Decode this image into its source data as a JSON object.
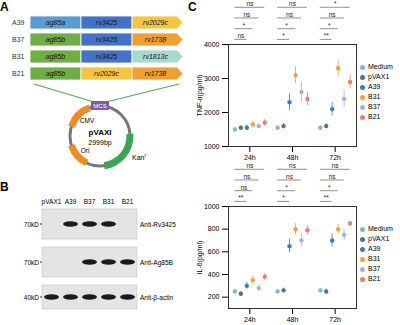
{
  "panel_labels": [
    "A",
    "B",
    "C"
  ],
  "constructs": [
    {
      "name": "A39",
      "genes": [
        "ag85a",
        "rv3425",
        "rv2029c"
      ]
    },
    {
      "name": "B37",
      "genes": [
        "ag85b",
        "rv3425",
        "rv1738"
      ]
    },
    {
      "name": "B31",
      "genes": [
        "ag85b",
        "rv3425",
        "rv1813c"
      ]
    },
    {
      "name": "B21",
      "genes": [
        "ag85b",
        "rv2029c",
        "rv1738"
      ]
    }
  ],
  "gene_colors": {
    "ag85a": "#5b9bd5",
    "ag85b": "#70ad47",
    "rv3425": "#4472c4",
    "rv2029c": "#f4c542",
    "rv1738": "#f0a030",
    "rv1813c": "#a9d8d0"
  },
  "plasmid": {
    "name": "pVAXI",
    "size": "2999bp",
    "promoter": "CMV",
    "origin": "Ori",
    "resistance": "Kan",
    "resistance_superscript": "r",
    "cloning_site": "MCS"
  },
  "blot": {
    "lanes": [
      "pVAX1",
      "A39",
      "B37",
      "B31",
      "B21"
    ],
    "rows": [
      {
        "marker": "70kD",
        "antibody": "Anti-Rv3425",
        "bands": [
          false,
          true,
          true,
          true,
          false
        ]
      },
      {
        "marker": "70kD",
        "antibody": "Anti-Ag85B",
        "bands": [
          false,
          false,
          true,
          true,
          true
        ]
      },
      {
        "marker": "40kD",
        "antibody": "Anti-β-actin",
        "bands": [
          true,
          true,
          true,
          true,
          true
        ]
      }
    ]
  },
  "chart_data": [
    {
      "type": "scatter",
      "y_label": "TNF-α(pg/ml)",
      "categories": [
        "24h",
        "48h",
        "72h"
      ],
      "ylim": [
        1000,
        4000
      ],
      "yticks": [
        1000,
        2000,
        3000,
        4000
      ],
      "legend": "right",
      "series": [
        {
          "name": "Medium",
          "color": "#7fb8d8",
          "values": [
            1500,
            1550,
            1550
          ],
          "error": [
            60,
            60,
            60
          ]
        },
        {
          "name": "pVAX1",
          "color": "#5a6e8c",
          "values": [
            1550,
            1600,
            1600
          ],
          "error": [
            60,
            80,
            70
          ]
        },
        {
          "name": "A39",
          "color": "#3a7bbf",
          "values": [
            1550,
            2300,
            2100
          ],
          "error": [
            80,
            250,
            200
          ]
        },
        {
          "name": "B31",
          "color": "#f0a040",
          "values": [
            1650,
            3100,
            3300
          ],
          "error": [
            100,
            250,
            250
          ]
        },
        {
          "name": "B37",
          "color": "#a0b4e0",
          "values": [
            1600,
            2600,
            2400
          ],
          "error": [
            80,
            300,
            250
          ]
        },
        {
          "name": "B21",
          "color": "#e8806a",
          "values": [
            1700,
            2400,
            2900
          ],
          "error": [
            100,
            200,
            200
          ]
        }
      ],
      "significance": [
        [
          "ns",
          "ns",
          "*",
          "ns"
        ],
        [
          "ns",
          "ns",
          "*",
          "*"
        ],
        [
          "*",
          "ns",
          "*",
          "**"
        ]
      ]
    },
    {
      "type": "scatter",
      "y_label": "IL-6(pg/ml)",
      "categories": [
        "24h",
        "48h",
        "72h"
      ],
      "ylim": [
        100,
        1000
      ],
      "yticks": [
        200,
        400,
        600,
        800,
        1000
      ],
      "legend": "right",
      "series": [
        {
          "name": "Medium",
          "color": "#7fb8d8",
          "values": [
            250,
            250,
            260
          ],
          "error": [
            20,
            20,
            20
          ]
        },
        {
          "name": "pVAX1",
          "color": "#5a6e8c",
          "values": [
            230,
            260,
            250
          ],
          "error": [
            20,
            20,
            20
          ]
        },
        {
          "name": "A39",
          "color": "#3a7bbf",
          "values": [
            300,
            650,
            700
          ],
          "error": [
            30,
            60,
            60
          ]
        },
        {
          "name": "B31",
          "color": "#f0a040",
          "values": [
            350,
            800,
            800
          ],
          "error": [
            40,
            50,
            40
          ]
        },
        {
          "name": "B37",
          "color": "#a0b4e0",
          "values": [
            280,
            700,
            750
          ],
          "error": [
            30,
            60,
            50
          ]
        },
        {
          "name": "B21",
          "color": "#e8806a",
          "values": [
            380,
            790,
            850
          ],
          "error": [
            30,
            40,
            20
          ]
        }
      ],
      "significance": [
        [
          "ns",
          "ns",
          "ns",
          "**"
        ],
        [
          "ns",
          "ns",
          "*",
          "*"
        ],
        [
          "ns",
          "ns",
          "*",
          "**"
        ]
      ]
    }
  ]
}
